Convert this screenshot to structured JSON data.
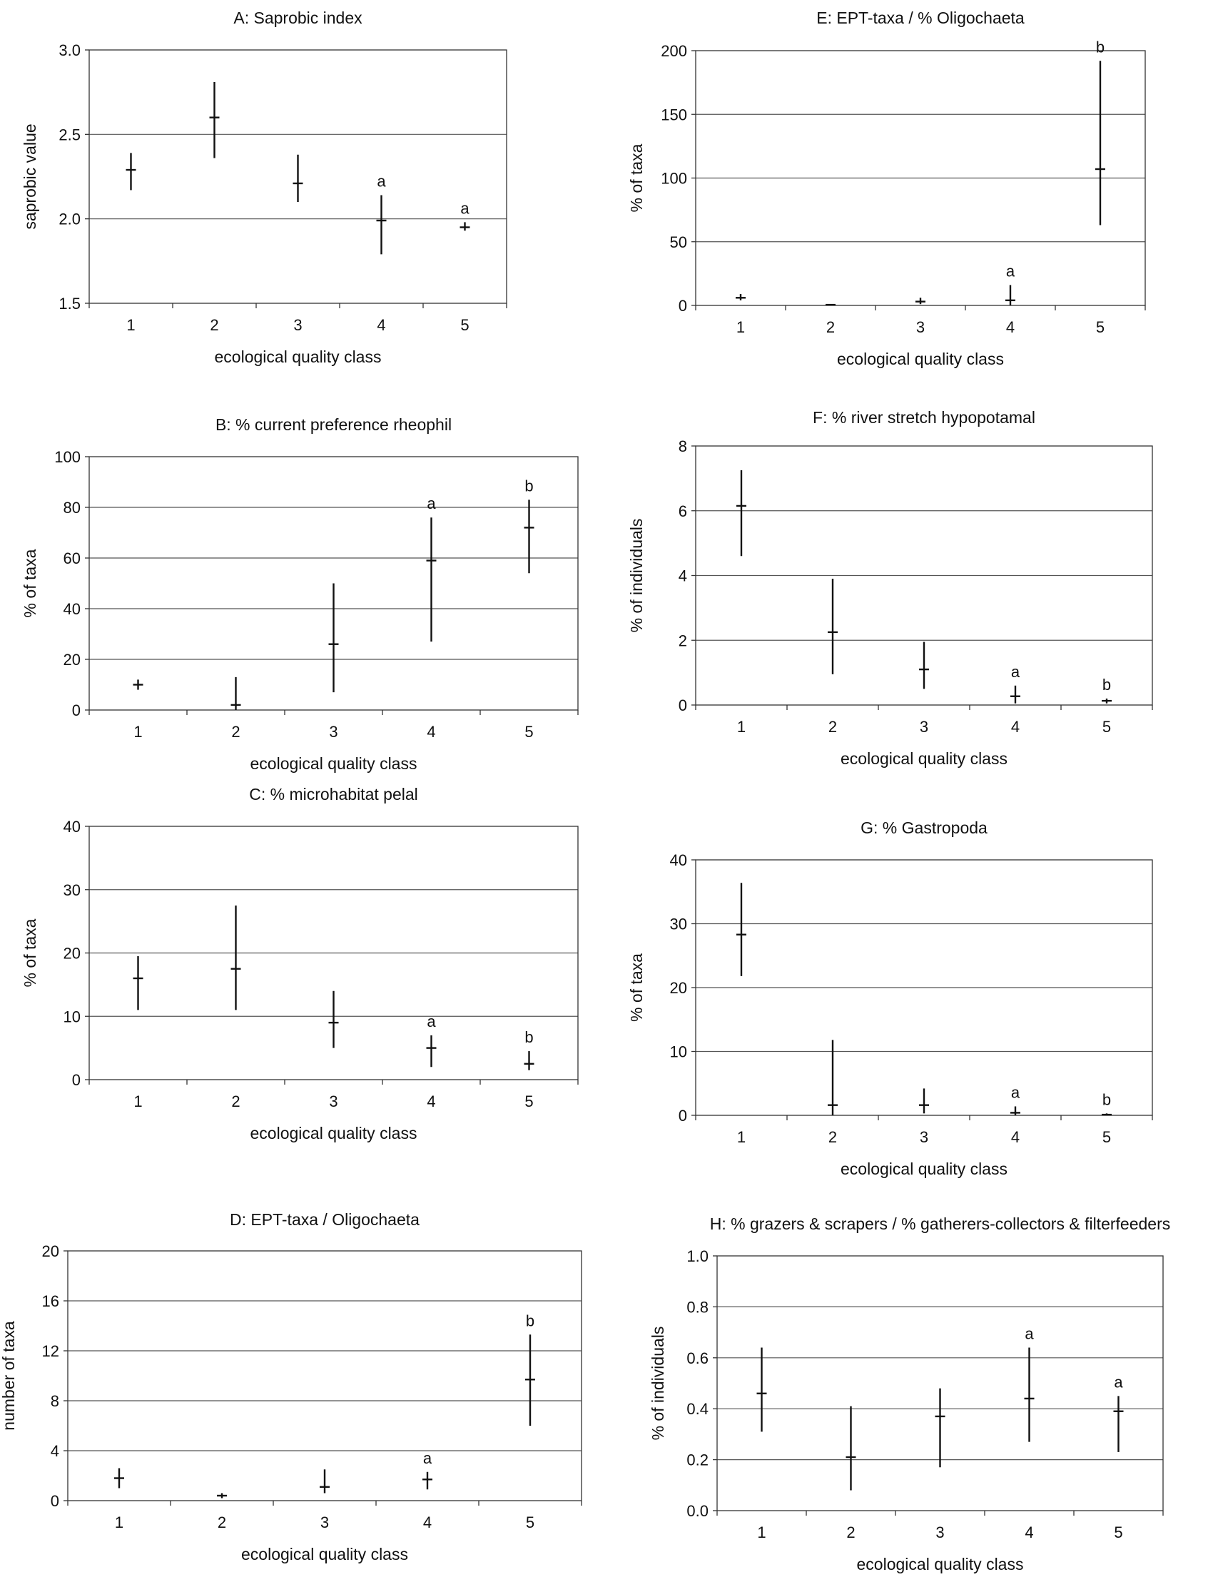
{
  "chart_data": [
    {
      "type": "scatter",
      "panel": "A",
      "title": "A:   Saprobic index",
      "xlabel": "ecological quality class",
      "ylabel": "saprobic value",
      "categories": [
        "1",
        "2",
        "3",
        "4",
        "5"
      ],
      "ylim": [
        1.5,
        3.0
      ],
      "yticks": [
        "1.5",
        "2.0",
        "2.5",
        "3.0"
      ],
      "grid": true,
      "median": [
        2.29,
        2.6,
        2.21,
        1.99,
        1.95
      ],
      "low": [
        2.17,
        2.36,
        2.1,
        1.79,
        1.93
      ],
      "high": [
        2.39,
        2.81,
        2.38,
        2.14,
        1.98
      ],
      "sig": [
        "",
        "",
        "",
        "a",
        "a"
      ]
    },
    {
      "type": "scatter",
      "panel": "B",
      "title": "B:   % current preference rheophil",
      "xlabel": "ecological quality class",
      "ylabel": "% of taxa",
      "categories": [
        "1",
        "2",
        "3",
        "4",
        "5"
      ],
      "ylim": [
        0,
        100
      ],
      "yticks": [
        "0",
        "20",
        "40",
        "60",
        "80",
        "100"
      ],
      "grid": true,
      "median": [
        10,
        2,
        26,
        59,
        72
      ],
      "low": [
        8,
        0,
        7,
        27,
        54
      ],
      "high": [
        12,
        13,
        50,
        76,
        83
      ],
      "sig": [
        "",
        "",
        "",
        "a",
        "b"
      ]
    },
    {
      "type": "scatter",
      "panel": "C",
      "title": "C:   % microhabitat pelal",
      "xlabel": "ecological quality class",
      "ylabel": "% of taxa",
      "categories": [
        "1",
        "2",
        "3",
        "4",
        "5"
      ],
      "ylim": [
        0,
        40
      ],
      "yticks": [
        "0",
        "10",
        "20",
        "30",
        "40"
      ],
      "grid": true,
      "median": [
        16,
        17.5,
        9,
        5,
        2.5
      ],
      "low": [
        11,
        11,
        5,
        2,
        1.5
      ],
      "high": [
        19.5,
        27.5,
        14,
        7,
        4.5
      ],
      "sig": [
        "",
        "",
        "",
        "a",
        "b"
      ]
    },
    {
      "type": "scatter",
      "panel": "D",
      "title": "D:   EPT-taxa / Oligochaeta",
      "xlabel": "ecological quality class",
      "ylabel": "number of taxa",
      "categories": [
        "1",
        "2",
        "3",
        "4",
        "5"
      ],
      "ylim": [
        0,
        20
      ],
      "yticks": [
        "0",
        "4",
        "8",
        "12",
        "16",
        "20"
      ],
      "grid": true,
      "median": [
        1.8,
        0.4,
        1.1,
        1.7,
        9.7
      ],
      "low": [
        1.0,
        0.2,
        0.6,
        0.9,
        6.0
      ],
      "high": [
        2.6,
        0.6,
        2.5,
        2.3,
        13.3
      ],
      "sig": [
        "",
        "",
        "",
        "a",
        "b"
      ]
    },
    {
      "type": "scatter",
      "panel": "E",
      "title": "E:   EPT-taxa / % Oligochaeta",
      "xlabel": "ecological quality class",
      "ylabel": "% of taxa",
      "categories": [
        "1",
        "2",
        "3",
        "4",
        "5"
      ],
      "ylim": [
        0,
        200
      ],
      "yticks": [
        "0",
        "50",
        "100",
        "150",
        "200"
      ],
      "grid": true,
      "median": [
        6,
        0.5,
        3,
        4,
        107
      ],
      "low": [
        4,
        0,
        1,
        0,
        63
      ],
      "high": [
        9,
        1,
        6,
        16,
        192
      ],
      "sig": [
        "",
        "",
        "",
        "a",
        "b"
      ]
    },
    {
      "type": "scatter",
      "panel": "F",
      "title": "F:   % river stretch hypopotamal",
      "xlabel": "ecological quality class",
      "ylabel": "% of individuals",
      "categories": [
        "1",
        "2",
        "3",
        "4",
        "5"
      ],
      "ylim": [
        0,
        8
      ],
      "yticks": [
        "0",
        "2",
        "4",
        "6",
        "8"
      ],
      "grid": true,
      "median": [
        6.15,
        2.25,
        1.1,
        0.27,
        0.13
      ],
      "low": [
        4.6,
        0.95,
        0.5,
        0.05,
        0.05
      ],
      "high": [
        7.25,
        3.9,
        1.95,
        0.6,
        0.2
      ],
      "sig": [
        "",
        "",
        "",
        "a",
        "b"
      ]
    },
    {
      "type": "scatter",
      "panel": "G",
      "title": "G:   % Gastropoda",
      "xlabel": "ecological quality class",
      "ylabel": "% of taxa",
      "categories": [
        "1",
        "2",
        "3",
        "4",
        "5"
      ],
      "ylim": [
        0,
        40
      ],
      "yticks": [
        "0",
        "10",
        "20",
        "30",
        "40"
      ],
      "grid": true,
      "median": [
        28.3,
        1.6,
        1.6,
        0.4,
        0.1
      ],
      "low": [
        21.8,
        0,
        0.3,
        0,
        0
      ],
      "high": [
        36.4,
        11.8,
        4.2,
        1.4,
        0.3
      ],
      "sig": [
        "",
        "",
        "",
        "a",
        "b"
      ]
    },
    {
      "type": "scatter",
      "panel": "H",
      "title": "H:   % grazers & scrapers / % gatherers-collectors & filterfeeders",
      "xlabel": "ecological quality class",
      "ylabel": "% of individuals",
      "categories": [
        "1",
        "2",
        "3",
        "4",
        "5"
      ],
      "ylim": [
        0.0,
        1.0
      ],
      "yticks": [
        "0.0",
        "0.2",
        "0.4",
        "0.6",
        "0.8",
        "1.0"
      ],
      "grid": true,
      "median": [
        0.46,
        0.21,
        0.37,
        0.44,
        0.39
      ],
      "low": [
        0.31,
        0.08,
        0.17,
        0.27,
        0.23
      ],
      "high": [
        0.64,
        0.41,
        0.48,
        0.64,
        0.45
      ],
      "sig": [
        "",
        "",
        "",
        "a",
        "a"
      ]
    }
  ]
}
